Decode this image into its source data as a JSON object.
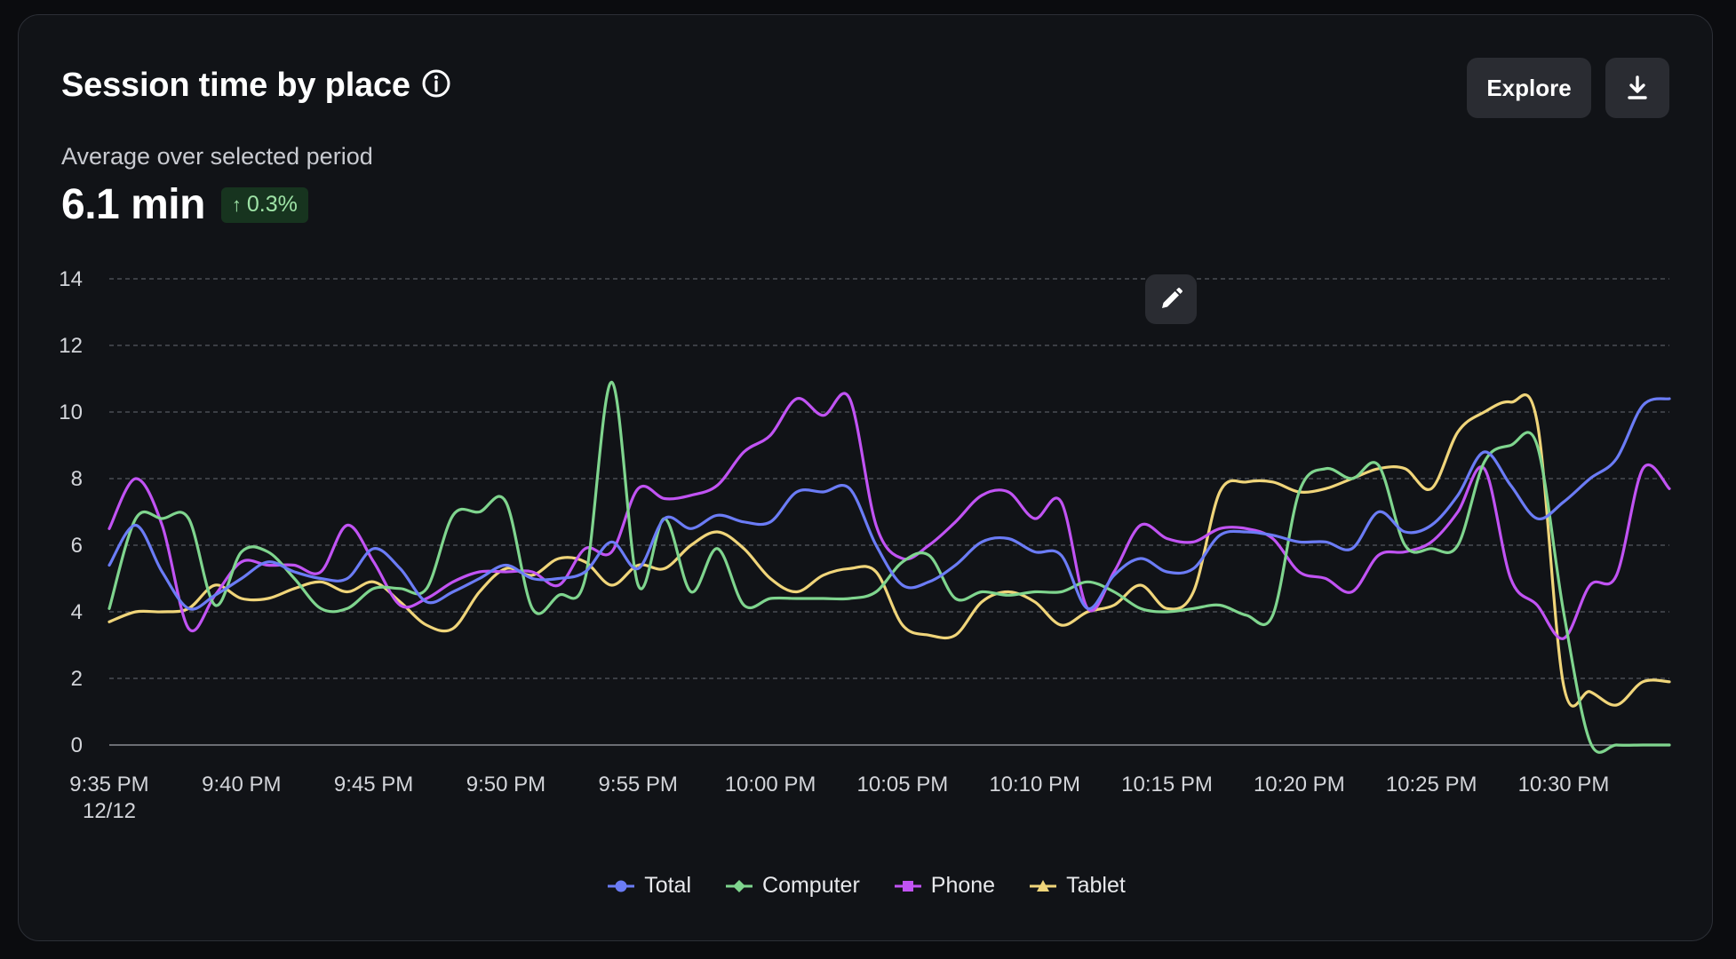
{
  "header": {
    "title": "Session time by place",
    "info_icon": "info-icon",
    "explore_label": "Explore",
    "download_icon": "download-icon"
  },
  "summary": {
    "subtitle": "Average over selected period",
    "value": "6.1 min",
    "delta": "0.3%",
    "delta_icon": "arrow-up-icon"
  },
  "edit_icon": "pencil-icon",
  "chart_data": {
    "type": "line",
    "x": [
      "9:35 PM",
      "9:36 PM",
      "9:37 PM",
      "9:38 PM",
      "9:39 PM",
      "9:40 PM",
      "9:41 PM",
      "9:42 PM",
      "9:43 PM",
      "9:44 PM",
      "9:45 PM",
      "9:46 PM",
      "9:47 PM",
      "9:48 PM",
      "9:49 PM",
      "9:50 PM",
      "9:51 PM",
      "9:52 PM",
      "9:53 PM",
      "9:54 PM",
      "9:55 PM",
      "9:56 PM",
      "9:57 PM",
      "9:58 PM",
      "9:59 PM",
      "10:00 PM",
      "10:01 PM",
      "10:02 PM",
      "10:03 PM",
      "10:04 PM",
      "10:05 PM",
      "10:06 PM",
      "10:07 PM",
      "10:08 PM",
      "10:09 PM",
      "10:10 PM",
      "10:11 PM",
      "10:12 PM",
      "10:13 PM",
      "10:14 PM",
      "10:15 PM",
      "10:16 PM",
      "10:17 PM",
      "10:18 PM",
      "10:19 PM",
      "10:20 PM",
      "10:21 PM",
      "10:22 PM",
      "10:23 PM",
      "10:24 PM",
      "10:25 PM",
      "10:26 PM",
      "10:27 PM",
      "10:28 PM",
      "10:29 PM",
      "10:30 PM",
      "10:31 PM",
      "10:32 PM",
      "10:33 PM",
      "10:34 PM"
    ],
    "x_ticks": [
      {
        "index": 0,
        "label": "9:35 PM",
        "sublabel": "12/12"
      },
      {
        "index": 5,
        "label": "9:40 PM",
        "sublabel": ""
      },
      {
        "index": 10,
        "label": "9:45 PM",
        "sublabel": ""
      },
      {
        "index": 15,
        "label": "9:50 PM",
        "sublabel": ""
      },
      {
        "index": 20,
        "label": "9:55 PM",
        "sublabel": ""
      },
      {
        "index": 25,
        "label": "10:00 PM",
        "sublabel": ""
      },
      {
        "index": 30,
        "label": "10:05 PM",
        "sublabel": ""
      },
      {
        "index": 35,
        "label": "10:10 PM",
        "sublabel": ""
      },
      {
        "index": 40,
        "label": "10:15 PM",
        "sublabel": ""
      },
      {
        "index": 45,
        "label": "10:20 PM",
        "sublabel": ""
      },
      {
        "index": 50,
        "label": "10:25 PM",
        "sublabel": ""
      },
      {
        "index": 55,
        "label": "10:30 PM",
        "sublabel": ""
      }
    ],
    "y_ticks": [
      0,
      2,
      4,
      6,
      8,
      10,
      12,
      14
    ],
    "ylim": [
      0,
      14
    ],
    "grid": true,
    "legend_position": "bottom",
    "series": [
      {
        "name": "Total",
        "color": "#6b7cf6",
        "marker": "circle",
        "values": [
          5.4,
          6.6,
          5.2,
          4.1,
          4.5,
          5.0,
          5.5,
          5.2,
          5.0,
          5.0,
          5.9,
          5.3,
          4.3,
          4.6,
          5.0,
          5.4,
          5.0,
          5.0,
          5.2,
          6.1,
          5.3,
          6.8,
          6.5,
          6.9,
          6.7,
          6.7,
          7.6,
          7.6,
          7.7,
          6.0,
          4.8,
          4.9,
          5.4,
          6.1,
          6.2,
          5.8,
          5.7,
          4.1,
          5.1,
          5.6,
          5.2,
          5.3,
          6.3,
          6.4,
          6.3,
          6.1,
          6.1,
          5.9,
          7.0,
          6.4,
          6.6,
          7.5,
          8.8,
          7.8,
          6.8,
          7.3,
          8.0,
          8.6,
          10.2,
          10.4
        ]
      },
      {
        "name": "Computer",
        "color": "#7fd58e",
        "marker": "diamond",
        "values": [
          4.1,
          6.8,
          6.8,
          6.8,
          4.2,
          5.8,
          5.8,
          5.0,
          4.1,
          4.1,
          4.7,
          4.7,
          4.7,
          6.9,
          7.0,
          7.3,
          4.1,
          4.5,
          5.0,
          10.9,
          4.8,
          6.8,
          4.6,
          5.9,
          4.2,
          4.4,
          4.4,
          4.4,
          4.4,
          4.6,
          5.5,
          5.7,
          4.4,
          4.6,
          4.5,
          4.6,
          4.6,
          4.9,
          4.6,
          4.1,
          4.0,
          4.1,
          4.2,
          3.9,
          3.9,
          7.6,
          8.3,
          8.0,
          8.4,
          6.0,
          5.9,
          6.0,
          8.5,
          9.0,
          9.0,
          4.0,
          0.1,
          0.0,
          0.0,
          0.0
        ]
      },
      {
        "name": "Phone",
        "color": "#c153f3",
        "marker": "square",
        "values": [
          6.5,
          8.0,
          6.6,
          3.5,
          4.5,
          5.5,
          5.4,
          5.4,
          5.2,
          6.6,
          5.5,
          4.2,
          4.4,
          4.9,
          5.2,
          5.2,
          5.2,
          4.8,
          5.9,
          5.8,
          7.7,
          7.4,
          7.5,
          7.8,
          8.8,
          9.3,
          10.4,
          9.9,
          10.4,
          6.6,
          5.6,
          6.0,
          6.7,
          7.5,
          7.6,
          6.8,
          7.3,
          4.1,
          5.2,
          6.6,
          6.2,
          6.1,
          6.5,
          6.5,
          6.2,
          5.2,
          5.0,
          4.6,
          5.7,
          5.8,
          6.1,
          7.0,
          8.3,
          5.0,
          4.2,
          3.2,
          4.8,
          5.1,
          8.3,
          7.7
        ]
      },
      {
        "name": "Tablet",
        "color": "#f0d57a",
        "marker": "triangle",
        "values": [
          3.7,
          4.0,
          4.0,
          4.1,
          4.8,
          4.4,
          4.4,
          4.7,
          4.9,
          4.6,
          4.9,
          4.3,
          3.6,
          3.5,
          4.6,
          5.3,
          5.1,
          5.6,
          5.5,
          4.8,
          5.4,
          5.3,
          6.0,
          6.4,
          5.9,
          5.0,
          4.6,
          5.1,
          5.3,
          5.2,
          3.6,
          3.3,
          3.3,
          4.3,
          4.6,
          4.3,
          3.6,
          4.0,
          4.2,
          4.8,
          4.1,
          4.6,
          7.6,
          7.9,
          7.9,
          7.6,
          7.7,
          8.0,
          8.3,
          8.3,
          7.7,
          9.4,
          10.0,
          10.3,
          9.7,
          1.8,
          1.6,
          1.2,
          1.9,
          1.9
        ]
      }
    ]
  }
}
